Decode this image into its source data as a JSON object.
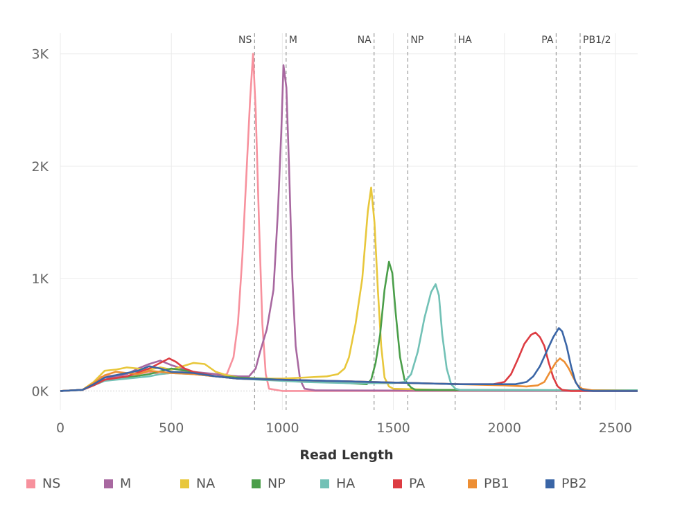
{
  "chart_data": {
    "type": "line",
    "title": "",
    "xlabel": "Read Length",
    "ylabel": "",
    "xlim": [
      0,
      2600
    ],
    "ylim": [
      -170,
      3060
    ],
    "x_ticks": [
      0,
      500,
      1000,
      1500,
      2000,
      2500
    ],
    "x_tick_labels": [
      "0",
      "500",
      "1000",
      "1500",
      "2000",
      "2500"
    ],
    "y_ticks": [
      0,
      1000,
      2000,
      3000
    ],
    "y_tick_labels": [
      "0K",
      "1K",
      "2K",
      "3K"
    ],
    "grid": true,
    "legend_position": "bottom",
    "reference_lines": [
      {
        "label": "NS",
        "x": 875
      },
      {
        "label": "M",
        "x": 1017
      },
      {
        "label": "NA",
        "x": 1413
      },
      {
        "label": "NP",
        "x": 1565
      },
      {
        "label": "HA",
        "x": 1778
      },
      {
        "label": "PA",
        "x": 2233
      },
      {
        "label": "PB1/2",
        "x": 2341
      }
    ],
    "series": [
      {
        "name": "NS",
        "color": "#f7919d",
        "points": [
          [
            0,
            0
          ],
          [
            100,
            10
          ],
          [
            150,
            50
          ],
          [
            170,
            120
          ],
          [
            200,
            130
          ],
          [
            250,
            140
          ],
          [
            300,
            120
          ],
          [
            350,
            150
          ],
          [
            400,
            170
          ],
          [
            450,
            150
          ],
          [
            500,
            160
          ],
          [
            550,
            170
          ],
          [
            600,
            150
          ],
          [
            650,
            140
          ],
          [
            700,
            130
          ],
          [
            750,
            150
          ],
          [
            780,
            300
          ],
          [
            800,
            600
          ],
          [
            820,
            1200
          ],
          [
            840,
            2000
          ],
          [
            855,
            2600
          ],
          [
            868,
            3000
          ],
          [
            880,
            2500
          ],
          [
            895,
            1500
          ],
          [
            910,
            600
          ],
          [
            925,
            150
          ],
          [
            940,
            20
          ],
          [
            1000,
            0
          ],
          [
            2600,
            0
          ]
        ]
      },
      {
        "name": "M",
        "color": "#a868a0",
        "points": [
          [
            0,
            0
          ],
          [
            100,
            10
          ],
          [
            150,
            60
          ],
          [
            200,
            100
          ],
          [
            250,
            130
          ],
          [
            300,
            150
          ],
          [
            350,
            200
          ],
          [
            400,
            240
          ],
          [
            450,
            270
          ],
          [
            500,
            230
          ],
          [
            550,
            200
          ],
          [
            600,
            170
          ],
          [
            700,
            150
          ],
          [
            800,
            130
          ],
          [
            850,
            130
          ],
          [
            880,
            200
          ],
          [
            900,
            350
          ],
          [
            930,
            550
          ],
          [
            960,
            900
          ],
          [
            980,
            1600
          ],
          [
            995,
            2300
          ],
          [
            1005,
            2900
          ],
          [
            1018,
            2700
          ],
          [
            1030,
            2000
          ],
          [
            1045,
            1000
          ],
          [
            1060,
            400
          ],
          [
            1080,
            100
          ],
          [
            1100,
            20
          ],
          [
            1150,
            5
          ],
          [
            2600,
            0
          ]
        ]
      },
      {
        "name": "NA",
        "color": "#e8c73b",
        "points": [
          [
            0,
            0
          ],
          [
            100,
            10
          ],
          [
            150,
            80
          ],
          [
            200,
            180
          ],
          [
            250,
            190
          ],
          [
            300,
            210
          ],
          [
            350,
            200
          ],
          [
            400,
            190
          ],
          [
            450,
            210
          ],
          [
            500,
            190
          ],
          [
            550,
            220
          ],
          [
            600,
            250
          ],
          [
            650,
            240
          ],
          [
            700,
            170
          ],
          [
            750,
            140
          ],
          [
            800,
            120
          ],
          [
            900,
            110
          ],
          [
            1000,
            110
          ],
          [
            1100,
            120
          ],
          [
            1200,
            130
          ],
          [
            1250,
            150
          ],
          [
            1280,
            200
          ],
          [
            1300,
            300
          ],
          [
            1330,
            600
          ],
          [
            1360,
            1000
          ],
          [
            1385,
            1600
          ],
          [
            1400,
            1810
          ],
          [
            1415,
            1500
          ],
          [
            1430,
            900
          ],
          [
            1445,
            400
          ],
          [
            1460,
            120
          ],
          [
            1480,
            40
          ],
          [
            1500,
            20
          ],
          [
            1700,
            10
          ],
          [
            2600,
            5
          ]
        ]
      },
      {
        "name": "NP",
        "color": "#4a9e49",
        "points": [
          [
            0,
            0
          ],
          [
            100,
            10
          ],
          [
            150,
            60
          ],
          [
            200,
            100
          ],
          [
            300,
            120
          ],
          [
            400,
            150
          ],
          [
            500,
            200
          ],
          [
            600,
            170
          ],
          [
            700,
            130
          ],
          [
            800,
            120
          ],
          [
            900,
            110
          ],
          [
            1000,
            100
          ],
          [
            1100,
            90
          ],
          [
            1200,
            80
          ],
          [
            1300,
            70
          ],
          [
            1380,
            60
          ],
          [
            1400,
            100
          ],
          [
            1420,
            250
          ],
          [
            1440,
            500
          ],
          [
            1460,
            900
          ],
          [
            1480,
            1150
          ],
          [
            1495,
            1050
          ],
          [
            1510,
            700
          ],
          [
            1530,
            300
          ],
          [
            1550,
            100
          ],
          [
            1580,
            30
          ],
          [
            1600,
            10
          ],
          [
            2600,
            5
          ]
        ]
      },
      {
        "name": "HA",
        "color": "#72c1b6",
        "points": [
          [
            0,
            0
          ],
          [
            100,
            10
          ],
          [
            150,
            50
          ],
          [
            200,
            90
          ],
          [
            250,
            100
          ],
          [
            300,
            110
          ],
          [
            350,
            120
          ],
          [
            400,
            130
          ],
          [
            450,
            150
          ],
          [
            500,
            160
          ],
          [
            600,
            150
          ],
          [
            700,
            130
          ],
          [
            800,
            110
          ],
          [
            900,
            100
          ],
          [
            1000,
            90
          ],
          [
            1100,
            80
          ],
          [
            1200,
            75
          ],
          [
            1300,
            70
          ],
          [
            1400,
            70
          ],
          [
            1500,
            70
          ],
          [
            1550,
            80
          ],
          [
            1580,
            150
          ],
          [
            1610,
            350
          ],
          [
            1640,
            650
          ],
          [
            1670,
            880
          ],
          [
            1690,
            950
          ],
          [
            1705,
            850
          ],
          [
            1720,
            500
          ],
          [
            1740,
            200
          ],
          [
            1760,
            60
          ],
          [
            1780,
            20
          ],
          [
            1800,
            10
          ],
          [
            2600,
            5
          ]
        ]
      },
      {
        "name": "PA",
        "color": "#dd3c42",
        "points": [
          [
            0,
            0
          ],
          [
            100,
            10
          ],
          [
            150,
            50
          ],
          [
            200,
            100
          ],
          [
            300,
            130
          ],
          [
            400,
            200
          ],
          [
            450,
            250
          ],
          [
            490,
            290
          ],
          [
            520,
            260
          ],
          [
            560,
            200
          ],
          [
            600,
            170
          ],
          [
            700,
            130
          ],
          [
            800,
            110
          ],
          [
            1000,
            100
          ],
          [
            1200,
            90
          ],
          [
            1400,
            80
          ],
          [
            1600,
            70
          ],
          [
            1800,
            60
          ],
          [
            1950,
            60
          ],
          [
            2000,
            80
          ],
          [
            2030,
            150
          ],
          [
            2060,
            280
          ],
          [
            2090,
            420
          ],
          [
            2120,
            500
          ],
          [
            2140,
            520
          ],
          [
            2160,
            480
          ],
          [
            2180,
            400
          ],
          [
            2200,
            250
          ],
          [
            2220,
            120
          ],
          [
            2240,
            40
          ],
          [
            2260,
            10
          ],
          [
            2300,
            0
          ],
          [
            2600,
            0
          ]
        ]
      },
      {
        "name": "PB1",
        "color": "#ed8e33",
        "points": [
          [
            0,
            0
          ],
          [
            100,
            10
          ],
          [
            150,
            70
          ],
          [
            200,
            140
          ],
          [
            250,
            170
          ],
          [
            300,
            160
          ],
          [
            350,
            150
          ],
          [
            400,
            180
          ],
          [
            450,
            170
          ],
          [
            500,
            160
          ],
          [
            600,
            150
          ],
          [
            700,
            130
          ],
          [
            800,
            110
          ],
          [
            1000,
            100
          ],
          [
            1200,
            90
          ],
          [
            1400,
            80
          ],
          [
            1600,
            70
          ],
          [
            1800,
            60
          ],
          [
            2000,
            50
          ],
          [
            2100,
            40
          ],
          [
            2150,
            50
          ],
          [
            2180,
            80
          ],
          [
            2200,
            150
          ],
          [
            2230,
            250
          ],
          [
            2250,
            290
          ],
          [
            2270,
            260
          ],
          [
            2290,
            200
          ],
          [
            2310,
            120
          ],
          [
            2330,
            50
          ],
          [
            2350,
            20
          ],
          [
            2400,
            5
          ],
          [
            2600,
            0
          ]
        ]
      },
      {
        "name": "PB2",
        "color": "#3a65a6",
        "points": [
          [
            0,
            0
          ],
          [
            100,
            10
          ],
          [
            150,
            60
          ],
          [
            200,
            120
          ],
          [
            250,
            140
          ],
          [
            300,
            160
          ],
          [
            350,
            180
          ],
          [
            400,
            220
          ],
          [
            450,
            200
          ],
          [
            500,
            170
          ],
          [
            600,
            160
          ],
          [
            700,
            130
          ],
          [
            800,
            110
          ],
          [
            1000,
            100
          ],
          [
            1200,
            90
          ],
          [
            1400,
            80
          ],
          [
            1600,
            70
          ],
          [
            1800,
            60
          ],
          [
            2000,
            60
          ],
          [
            2050,
            60
          ],
          [
            2100,
            80
          ],
          [
            2130,
            130
          ],
          [
            2160,
            220
          ],
          [
            2190,
            350
          ],
          [
            2220,
            480
          ],
          [
            2245,
            560
          ],
          [
            2260,
            530
          ],
          [
            2280,
            400
          ],
          [
            2300,
            220
          ],
          [
            2320,
            80
          ],
          [
            2340,
            20
          ],
          [
            2360,
            5
          ],
          [
            2400,
            0
          ],
          [
            2600,
            0
          ]
        ]
      }
    ]
  }
}
